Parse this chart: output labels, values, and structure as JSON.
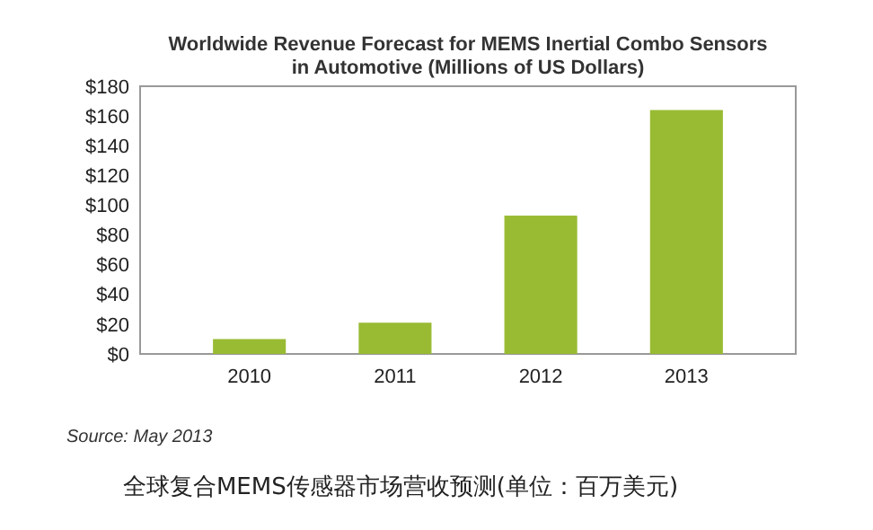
{
  "chart_data": {
    "type": "bar",
    "title": "Worldwide Revenue Forecast for MEMS Inertial Combo Sensors\nin Automotive (Millions of US Dollars)",
    "categories": [
      "2010",
      "2011",
      "2012",
      "2013"
    ],
    "values": [
      10,
      21,
      93,
      164
    ],
    "color": "#99bb33",
    "ylim": [
      0,
      180
    ],
    "yticks": [
      {
        "value": 0,
        "label": "$0"
      },
      {
        "value": 20,
        "label": "$20"
      },
      {
        "value": 40,
        "label": "$40"
      },
      {
        "value": 60,
        "label": "$60"
      },
      {
        "value": 80,
        "label": "$80"
      },
      {
        "value": 100,
        "label": "$100"
      },
      {
        "value": 120,
        "label": "$120"
      },
      {
        "value": 140,
        "label": "$140"
      },
      {
        "value": 160,
        "label": "$160"
      },
      {
        "value": 180,
        "label": "$180"
      }
    ],
    "grid": false,
    "annotations": [
      "Source: May 2013",
      "全球复合MEMS传感器市场营收预测(单位：百万美元)"
    ]
  }
}
